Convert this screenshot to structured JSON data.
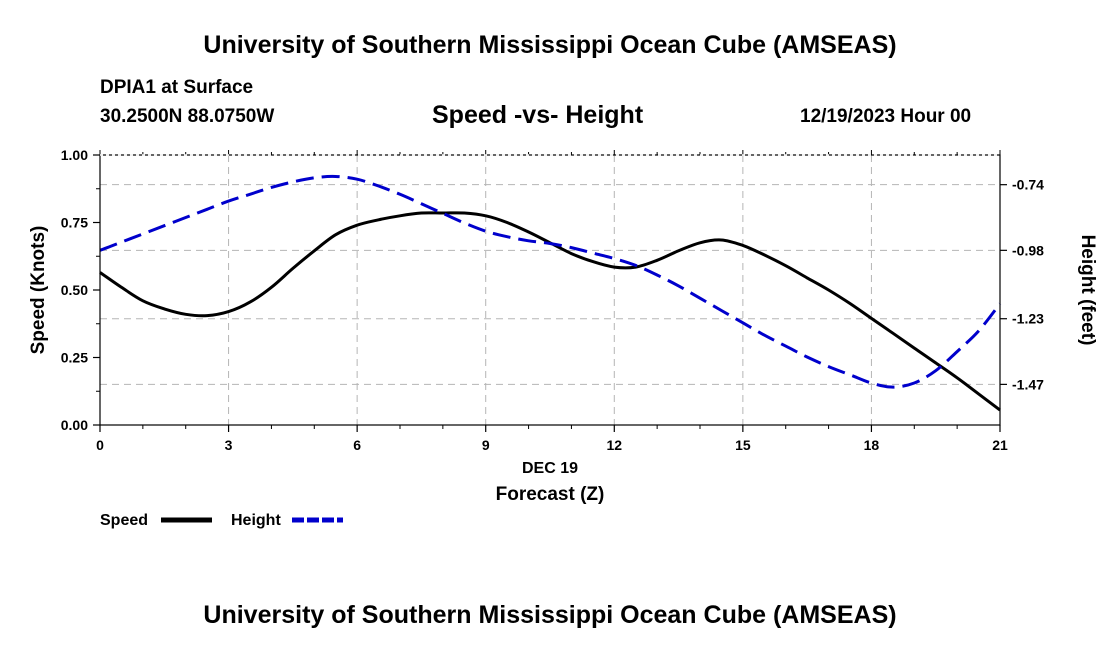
{
  "header": {
    "title": "University of Southern Mississippi Ocean Cube (AMSEAS)",
    "station": "DPIA1 at Surface",
    "coords": "30.2500N  88.0750W",
    "date_label": "12/19/2023 Hour 00",
    "footer_title": "University of Southern Mississippi Ocean Cube (AMSEAS)"
  },
  "chart_data": {
    "type": "line",
    "title": "Speed -vs- Height",
    "xlabel_top": "DEC 19",
    "xlabel": "Forecast (Z)",
    "ylabel": "Speed (Knots)",
    "y2label": "Height (feet)",
    "x_ticks": [
      "0",
      "3",
      "6",
      "9",
      "12",
      "15",
      "18",
      "21"
    ],
    "xlim": [
      0,
      21
    ],
    "ylim": [
      0,
      1
    ],
    "y_ticks": [
      "0.00",
      "0.25",
      "0.50",
      "0.75",
      "1.00"
    ],
    "y2lim": [
      -1.6185,
      -0.6315
    ],
    "y2_ticks": [
      "-0.74",
      "-0.98",
      "-1.23",
      "-1.47"
    ],
    "grid": true,
    "series": [
      {
        "name": "Speed",
        "axis": "left",
        "color": "#000000",
        "x": [
          0,
          0.5,
          1,
          1.5,
          2,
          2.5,
          3,
          3.5,
          4,
          4.5,
          5,
          5.5,
          6,
          6.5,
          7,
          7.5,
          8,
          8.5,
          9,
          9.5,
          10,
          10.5,
          11,
          11.5,
          12,
          12.5,
          13,
          13.5,
          14,
          14.5,
          15,
          15.5,
          16,
          16.5,
          17,
          17.5,
          18,
          18.5,
          19,
          19.5,
          20,
          20.5,
          21
        ],
        "values": [
          0.565,
          0.51,
          0.46,
          0.43,
          0.41,
          0.405,
          0.42,
          0.455,
          0.51,
          0.58,
          0.645,
          0.705,
          0.74,
          0.76,
          0.775,
          0.785,
          0.785,
          0.785,
          0.775,
          0.75,
          0.715,
          0.675,
          0.635,
          0.605,
          0.585,
          0.585,
          0.61,
          0.645,
          0.675,
          0.685,
          0.665,
          0.63,
          0.59,
          0.545,
          0.5,
          0.45,
          0.395,
          0.34,
          0.285,
          0.23,
          0.175,
          0.115,
          0.055
        ]
      },
      {
        "name": "Height",
        "axis": "right",
        "color": "#0000cc",
        "x": [
          0,
          0.5,
          1,
          1.5,
          2,
          2.5,
          3,
          3.5,
          4,
          4.5,
          5,
          5.5,
          6,
          6.5,
          7,
          7.5,
          8,
          8.5,
          9,
          9.5,
          10,
          10.5,
          11,
          11.5,
          12,
          12.5,
          13,
          13.5,
          14,
          14.5,
          15,
          15.5,
          16,
          16.5,
          17,
          17.5,
          18,
          18.5,
          19,
          19.5,
          20,
          20.5,
          21
        ],
        "values": [
          -0.98,
          -0.95,
          -0.92,
          -0.89,
          -0.86,
          -0.83,
          -0.8,
          -0.775,
          -0.75,
          -0.73,
          -0.715,
          -0.71,
          -0.72,
          -0.745,
          -0.775,
          -0.81,
          -0.845,
          -0.88,
          -0.91,
          -0.93,
          -0.945,
          -0.955,
          -0.97,
          -0.99,
          -1.01,
          -1.035,
          -1.07,
          -1.11,
          -1.155,
          -1.2,
          -1.245,
          -1.29,
          -1.33,
          -1.37,
          -1.405,
          -1.435,
          -1.465,
          -1.48,
          -1.465,
          -1.42,
          -1.35,
          -1.275,
          -1.175
        ]
      }
    ],
    "legend": {
      "position": "bottom-left",
      "entries": [
        {
          "label": "Speed",
          "color": "#000000",
          "style": "solid"
        },
        {
          "label": "Height",
          "color": "#0000cc",
          "style": "dashed"
        }
      ]
    }
  }
}
